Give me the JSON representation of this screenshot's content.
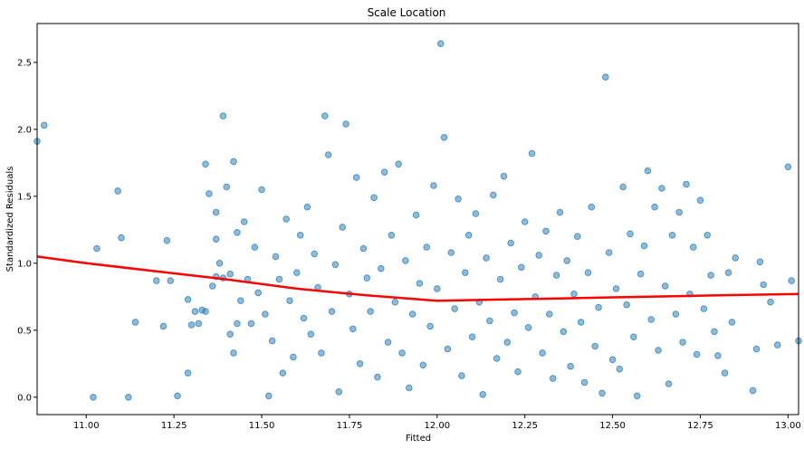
{
  "chart_data": {
    "type": "scatter",
    "title": "Scale Location",
    "xlabel": "Fitted",
    "ylabel": "Standardized Residuals",
    "xlim": [
      10.86,
      13.03
    ],
    "ylim": [
      -0.13,
      2.79
    ],
    "xticks": [
      11.0,
      11.25,
      11.5,
      11.75,
      12.0,
      12.25,
      12.5,
      12.75,
      13.0
    ],
    "xtick_labels": [
      "11.00",
      "11.25",
      "11.50",
      "11.75",
      "12.00",
      "12.25",
      "12.50",
      "12.75",
      "13.00"
    ],
    "yticks": [
      0.0,
      0.5,
      1.0,
      1.5,
      2.0,
      2.5
    ],
    "ytick_labels": [
      "0.0",
      "0.5",
      "1.0",
      "1.5",
      "2.0",
      "2.5"
    ],
    "grid": false,
    "point_color": "#1f77b4",
    "trend_color": "#ff0000",
    "points": [
      [
        10.86,
        1.91
      ],
      [
        10.88,
        2.03
      ],
      [
        11.02,
        0.0
      ],
      [
        11.03,
        1.11
      ],
      [
        11.09,
        1.54
      ],
      [
        11.1,
        1.19
      ],
      [
        11.12,
        0.0
      ],
      [
        11.14,
        0.56
      ],
      [
        11.2,
        0.87
      ],
      [
        11.22,
        0.53
      ],
      [
        11.23,
        1.17
      ],
      [
        11.24,
        0.87
      ],
      [
        11.26,
        0.01
      ],
      [
        11.29,
        0.18
      ],
      [
        11.29,
        0.73
      ],
      [
        11.3,
        0.54
      ],
      [
        11.31,
        0.64
      ],
      [
        11.32,
        0.55
      ],
      [
        11.33,
        0.65
      ],
      [
        11.34,
        0.64
      ],
      [
        11.34,
        1.74
      ],
      [
        11.35,
        1.52
      ],
      [
        11.36,
        0.83
      ],
      [
        11.37,
        0.9
      ],
      [
        11.37,
        1.18
      ],
      [
        11.37,
        1.38
      ],
      [
        11.38,
        1.0
      ],
      [
        11.39,
        2.1
      ],
      [
        11.39,
        0.89
      ],
      [
        11.4,
        1.57
      ],
      [
        11.41,
        0.47
      ],
      [
        11.41,
        0.92
      ],
      [
        11.42,
        1.76
      ],
      [
        11.42,
        0.33
      ],
      [
        11.43,
        1.23
      ],
      [
        11.43,
        0.55
      ],
      [
        11.44,
        0.72
      ],
      [
        11.45,
        1.31
      ],
      [
        11.46,
        0.88
      ],
      [
        11.47,
        0.55
      ],
      [
        11.48,
        1.12
      ],
      [
        11.49,
        0.78
      ],
      [
        11.5,
        1.55
      ],
      [
        11.51,
        0.62
      ],
      [
        11.52,
        0.01
      ],
      [
        11.53,
        0.42
      ],
      [
        11.54,
        1.05
      ],
      [
        11.55,
        0.88
      ],
      [
        11.56,
        0.18
      ],
      [
        11.57,
        1.33
      ],
      [
        11.58,
        0.72
      ],
      [
        11.59,
        0.3
      ],
      [
        11.6,
        0.93
      ],
      [
        11.61,
        1.21
      ],
      [
        11.62,
        0.59
      ],
      [
        11.63,
        1.42
      ],
      [
        11.64,
        0.47
      ],
      [
        11.65,
        1.07
      ],
      [
        11.66,
        0.82
      ],
      [
        11.67,
        0.33
      ],
      [
        11.68,
        2.1
      ],
      [
        11.69,
        1.81
      ],
      [
        11.7,
        0.64
      ],
      [
        11.71,
        0.99
      ],
      [
        11.72,
        0.04
      ],
      [
        11.73,
        1.27
      ],
      [
        11.74,
        2.04
      ],
      [
        11.75,
        0.77
      ],
      [
        11.76,
        0.51
      ],
      [
        11.77,
        1.64
      ],
      [
        11.78,
        0.25
      ],
      [
        11.79,
        1.11
      ],
      [
        11.8,
        0.89
      ],
      [
        11.81,
        0.64
      ],
      [
        11.82,
        1.49
      ],
      [
        11.83,
        0.15
      ],
      [
        11.84,
        0.96
      ],
      [
        11.85,
        1.68
      ],
      [
        11.86,
        0.41
      ],
      [
        11.87,
        1.21
      ],
      [
        11.88,
        0.71
      ],
      [
        11.89,
        1.74
      ],
      [
        11.9,
        0.33
      ],
      [
        11.91,
        1.02
      ],
      [
        11.92,
        0.07
      ],
      [
        11.93,
        0.62
      ],
      [
        11.94,
        1.36
      ],
      [
        11.95,
        0.85
      ],
      [
        11.96,
        0.24
      ],
      [
        11.97,
        1.12
      ],
      [
        11.98,
        0.53
      ],
      [
        11.99,
        1.58
      ],
      [
        12.0,
        0.81
      ],
      [
        12.01,
        2.64
      ],
      [
        12.02,
        1.94
      ],
      [
        12.03,
        0.36
      ],
      [
        12.04,
        1.08
      ],
      [
        12.05,
        0.66
      ],
      [
        12.06,
        1.48
      ],
      [
        12.07,
        0.16
      ],
      [
        12.08,
        0.93
      ],
      [
        12.09,
        1.21
      ],
      [
        12.1,
        0.45
      ],
      [
        12.11,
        1.37
      ],
      [
        12.12,
        0.71
      ],
      [
        12.13,
        0.02
      ],
      [
        12.14,
        1.04
      ],
      [
        12.15,
        0.57
      ],
      [
        12.16,
        1.51
      ],
      [
        12.17,
        0.29
      ],
      [
        12.18,
        0.88
      ],
      [
        12.19,
        1.65
      ],
      [
        12.2,
        0.41
      ],
      [
        12.21,
        1.15
      ],
      [
        12.22,
        0.63
      ],
      [
        12.23,
        0.19
      ],
      [
        12.24,
        0.97
      ],
      [
        12.25,
        1.31
      ],
      [
        12.26,
        0.52
      ],
      [
        12.27,
        1.82
      ],
      [
        12.28,
        0.75
      ],
      [
        12.29,
        1.06
      ],
      [
        12.3,
        0.33
      ],
      [
        12.31,
        1.24
      ],
      [
        12.32,
        0.62
      ],
      [
        12.33,
        0.14
      ],
      [
        12.34,
        0.91
      ],
      [
        12.35,
        1.38
      ],
      [
        12.36,
        0.49
      ],
      [
        12.37,
        1.02
      ],
      [
        12.38,
        0.23
      ],
      [
        12.39,
        0.77
      ],
      [
        12.4,
        1.2
      ],
      [
        12.41,
        0.56
      ],
      [
        12.42,
        0.11
      ],
      [
        12.43,
        0.93
      ],
      [
        12.44,
        1.42
      ],
      [
        12.45,
        0.38
      ],
      [
        12.46,
        0.67
      ],
      [
        12.47,
        0.03
      ],
      [
        12.48,
        2.39
      ],
      [
        12.49,
        1.08
      ],
      [
        12.5,
        0.28
      ],
      [
        12.51,
        0.81
      ],
      [
        12.52,
        0.21
      ],
      [
        12.53,
        1.57
      ],
      [
        12.54,
        0.69
      ],
      [
        12.55,
        1.22
      ],
      [
        12.56,
        0.45
      ],
      [
        12.57,
        0.01
      ],
      [
        12.58,
        0.92
      ],
      [
        12.59,
        1.13
      ],
      [
        12.6,
        1.69
      ],
      [
        12.61,
        0.58
      ],
      [
        12.62,
        1.42
      ],
      [
        12.63,
        0.35
      ],
      [
        12.64,
        1.56
      ],
      [
        12.65,
        0.83
      ],
      [
        12.66,
        0.1
      ],
      [
        12.67,
        1.21
      ],
      [
        12.68,
        0.62
      ],
      [
        12.69,
        1.38
      ],
      [
        12.7,
        0.41
      ],
      [
        12.71,
        1.59
      ],
      [
        12.72,
        0.77
      ],
      [
        12.73,
        1.12
      ],
      [
        12.74,
        0.32
      ],
      [
        12.75,
        1.47
      ],
      [
        12.76,
        0.66
      ],
      [
        12.77,
        1.21
      ],
      [
        12.78,
        0.91
      ],
      [
        12.79,
        0.49
      ],
      [
        12.8,
        0.31
      ],
      [
        12.82,
        0.18
      ],
      [
        12.83,
        0.93
      ],
      [
        12.84,
        0.56
      ],
      [
        12.85,
        1.04
      ],
      [
        12.9,
        0.05
      ],
      [
        12.91,
        0.36
      ],
      [
        12.92,
        1.01
      ],
      [
        12.93,
        0.84
      ],
      [
        12.95,
        0.71
      ],
      [
        12.97,
        0.39
      ],
      [
        13.0,
        1.72
      ],
      [
        13.01,
        0.87
      ],
      [
        13.03,
        0.42
      ]
    ],
    "trend": {
      "x": [
        10.86,
        11.0,
        11.2,
        11.4,
        11.6,
        11.8,
        12.0,
        12.2,
        12.4,
        12.6,
        12.8,
        13.03
      ],
      "y": [
        1.05,
        1.0,
        0.94,
        0.88,
        0.81,
        0.76,
        0.72,
        0.73,
        0.74,
        0.75,
        0.76,
        0.77
      ]
    }
  }
}
